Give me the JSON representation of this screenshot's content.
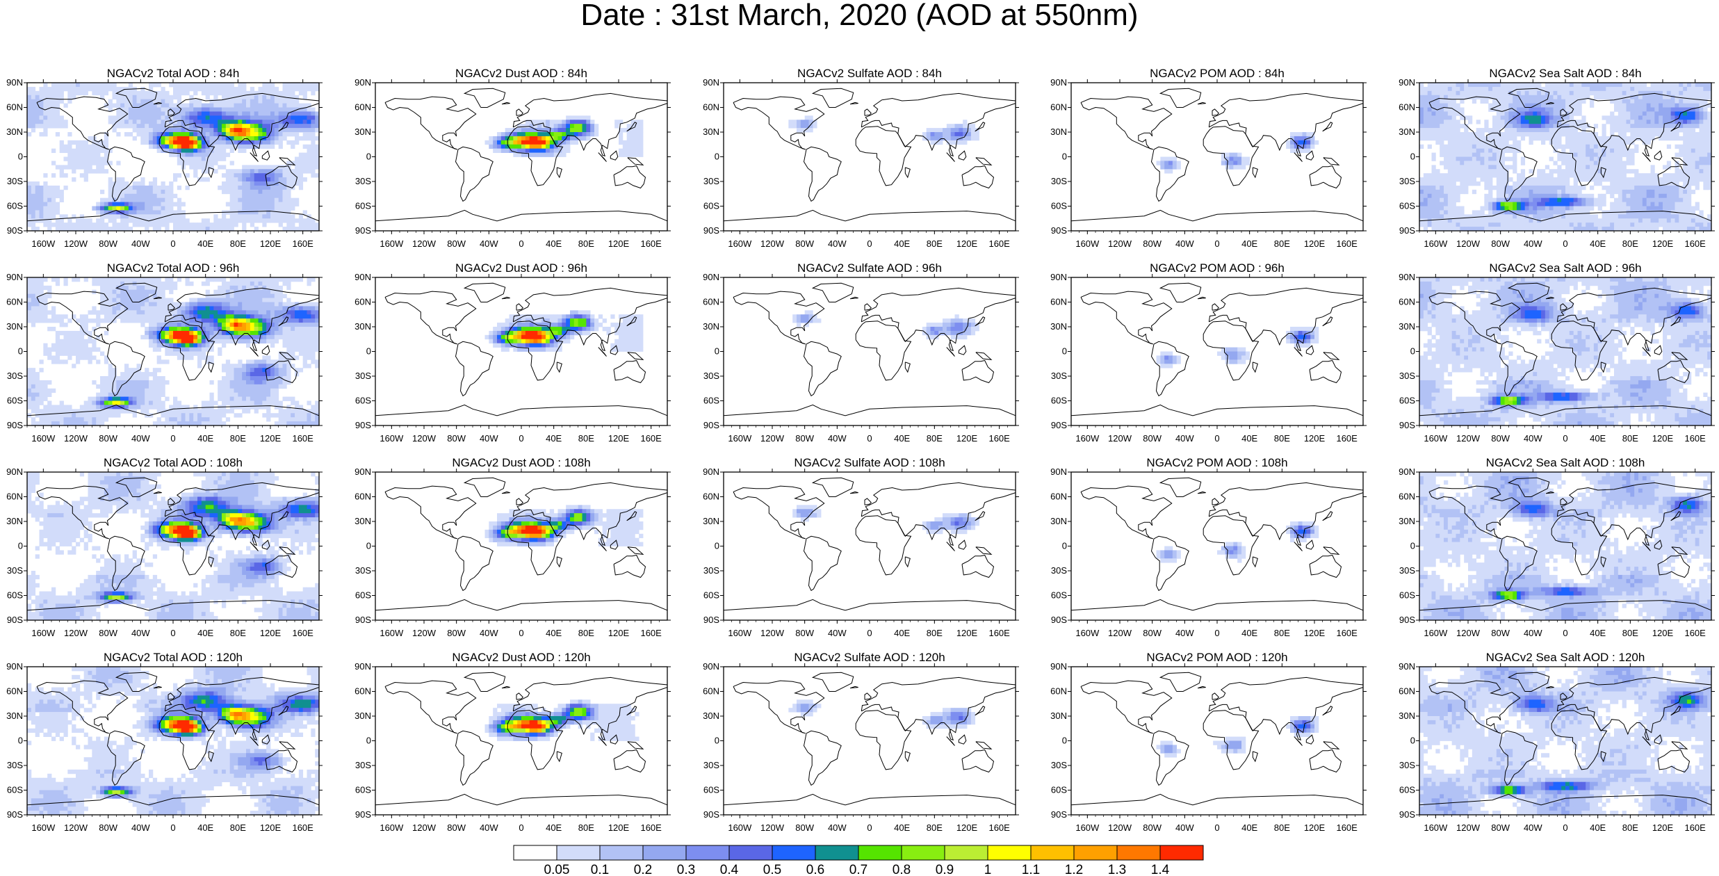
{
  "title": "Date : 31st March, 2020 (AOD at 550nm)",
  "rows": [
    "84h",
    "96h",
    "108h",
    "120h"
  ],
  "panels": [
    [
      "NGACv2 Total AOD : 84h",
      "NGACv2 Dust AOD : 84h",
      "NGACv2 Sulfate AOD : 84h",
      "NGACv2 POM AOD : 84h",
      "NGACv2 Sea Salt AOD : 84h"
    ],
    [
      "NGACv2 Total AOD : 96h",
      "NGACv2 Dust AOD : 96h",
      "NGACv2 Sulfate AOD : 96h",
      "NGACv2 POM AOD : 96h",
      "NGACv2 Sea Salt AOD : 96h"
    ],
    [
      "NGACv2 Total AOD : 108h",
      "NGACv2 Dust AOD : 108h",
      "NGACv2 Sulfate AOD : 108h",
      "NGACv2 POM AOD : 108h",
      "NGACv2 Sea Salt AOD : 108h"
    ],
    [
      "NGACv2 Total AOD : 120h",
      "NGACv2 Dust AOD : 120h",
      "NGACv2 Sulfate AOD : 120h",
      "NGACv2 POM AOD : 120h",
      "NGACv2 Sea Salt  AOD : 120h"
    ]
  ],
  "lat_ticks": [
    "90N",
    "60N",
    "30N",
    "0",
    "30S",
    "60S",
    "90S"
  ],
  "lon_ticks": [
    "160W",
    "120W",
    "80W",
    "40W",
    "0",
    "40E",
    "80E",
    "120E",
    "160E"
  ],
  "lat_values": [
    90,
    60,
    30,
    0,
    -30,
    -60,
    -90
  ],
  "lon_values": [
    -160,
    -120,
    -80,
    -40,
    0,
    40,
    80,
    120,
    160
  ],
  "colorbar": {
    "labels": [
      "0.05",
      "0.1",
      "0.2",
      "0.3",
      "0.4",
      "0.5",
      "0.6",
      "0.7",
      "0.8",
      "0.9",
      "1",
      "1.1",
      "1.2",
      "1.3",
      "1.4"
    ],
    "colors": [
      "#ffffff",
      "#d2dcfa",
      "#b2c2f5",
      "#94a8f0",
      "#7d8ef0",
      "#5a67e6",
      "#1e64ff",
      "#109090",
      "#55e400",
      "#88ee11",
      "#bbee33",
      "#ffff00",
      "#ffc000",
      "#ffa000",
      "#ff7800",
      "#ff2a00"
    ]
  }
}
